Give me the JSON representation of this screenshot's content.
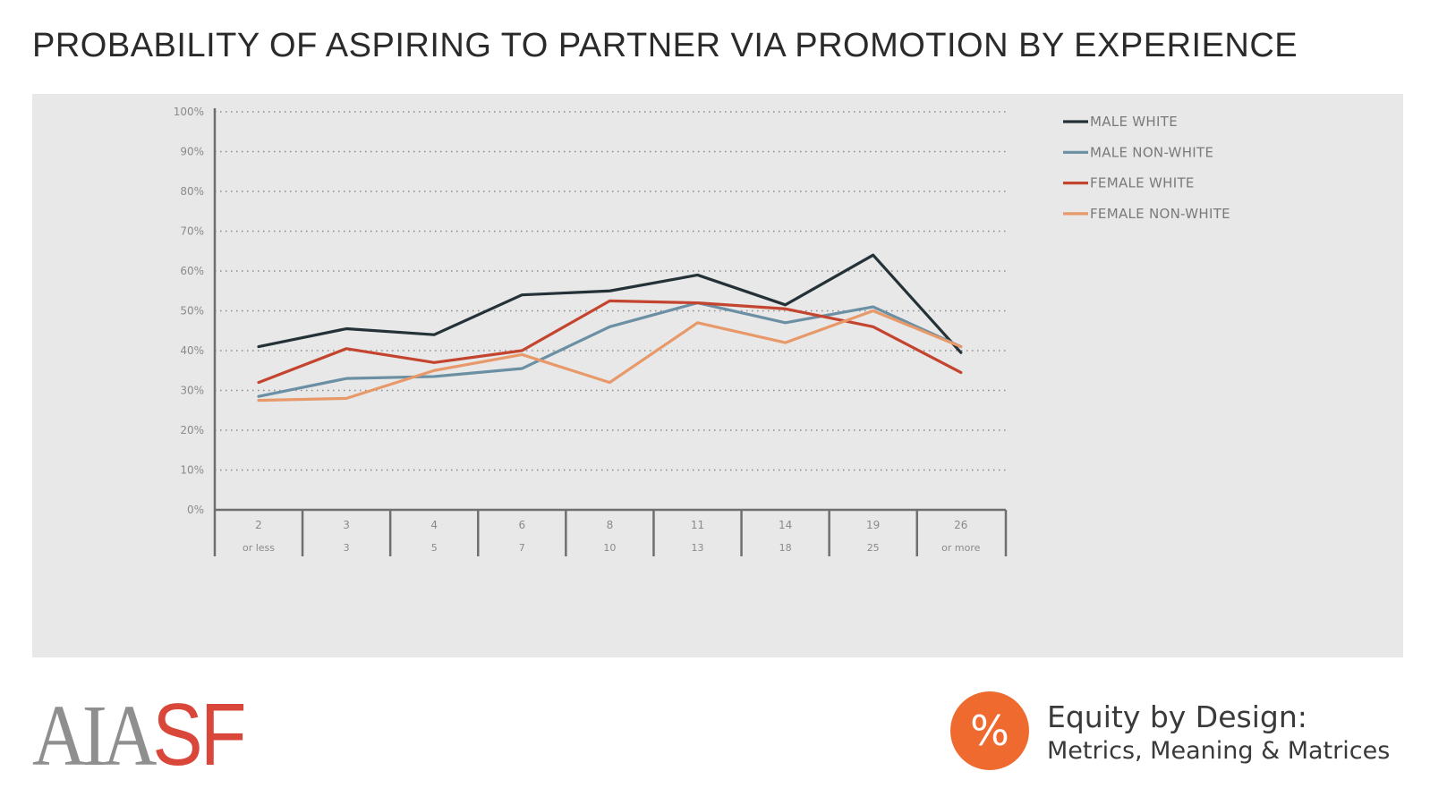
{
  "title": "PROBABILITY OF ASPIRING TO PARTNER VIA PROMOTION BY EXPERIENCE",
  "footer": {
    "logo_left": "AIA",
    "logo_right": "SF",
    "badge_symbol": "%",
    "project_title": "Equity by Design:",
    "project_subtitle": "Metrics, Meaning & Matrices"
  },
  "colors": {
    "panel": "#e8e8e8",
    "axis": "#6f6f6f",
    "grid": "#8a8a8a",
    "logo_gray": "#8f8f8f",
    "logo_red": "#d9473b",
    "badge": "#ef6a2f"
  },
  "chart_data": {
    "type": "line",
    "title": "",
    "xlabel": "",
    "ylabel": "",
    "ylim": [
      0,
      100
    ],
    "yticks": [
      "0%",
      "10%",
      "20%",
      "30%",
      "40%",
      "50%",
      "60%",
      "70%",
      "80%",
      "90%",
      "100%"
    ],
    "grid": true,
    "legend_position": "top-right",
    "categories": [
      {
        "top": "2",
        "bottom": "or less"
      },
      {
        "top": "3",
        "bottom": "3"
      },
      {
        "top": "4",
        "bottom": "5"
      },
      {
        "top": "6",
        "bottom": "7"
      },
      {
        "top": "8",
        "bottom": "10"
      },
      {
        "top": "11",
        "bottom": "13"
      },
      {
        "top": "14",
        "bottom": "18"
      },
      {
        "top": "19",
        "bottom": "25"
      },
      {
        "top": "26",
        "bottom": "or more"
      }
    ],
    "series": [
      {
        "name": "MALE WHITE",
        "color": "#243238",
        "values": [
          41,
          45.5,
          44,
          54,
          55,
          59,
          51.5,
          64,
          39.5
        ]
      },
      {
        "name": "MALE NON-WHITE",
        "color": "#6b8fa3",
        "values": [
          28.5,
          33,
          33.5,
          35.5,
          46,
          52,
          47,
          51,
          41
        ]
      },
      {
        "name": "FEMALE WHITE",
        "color": "#c4452f",
        "values": [
          32,
          40.5,
          37,
          40,
          52.5,
          52,
          50.5,
          46,
          34.5
        ]
      },
      {
        "name": "FEMALE NON-WHITE",
        "color": "#e8996a",
        "values": [
          27.5,
          28,
          35,
          39,
          32,
          47,
          42,
          50,
          41
        ]
      }
    ]
  }
}
